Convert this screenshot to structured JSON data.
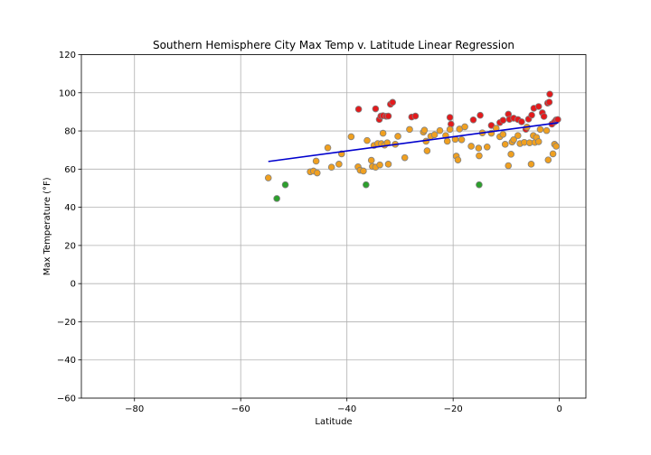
{
  "chart_data": {
    "type": "scatter",
    "title": "Southern Hemisphere City Max Temp v. Latitude Linear Regression",
    "xlabel": "Latitude",
    "ylabel": "Max Temperature (°F)",
    "xlim": [
      -90,
      5
    ],
    "ylim": [
      -60,
      120
    ],
    "xticks": [
      -80,
      -60,
      -40,
      -20,
      0
    ],
    "yticks": [
      -60,
      -40,
      -20,
      0,
      20,
      40,
      60,
      80,
      100,
      120
    ],
    "grid": true,
    "colors": {
      "warm": "#e31a1c",
      "mild": "#f0a020",
      "cool": "#2ca02c",
      "edge": "#808080",
      "regression": "#0000cd"
    },
    "regression": {
      "x": [
        -54.8,
        -0.2
      ],
      "y": [
        64.0,
        84.3
      ]
    },
    "series": [
      {
        "group": "warm",
        "points": [
          [
            -37.8,
            91.4
          ],
          [
            -34.6,
            91.6
          ],
          [
            -33.9,
            86
          ],
          [
            -33.6,
            87.8
          ],
          [
            -33.2,
            88
          ],
          [
            -32.6,
            87.7
          ],
          [
            -32.2,
            87.8
          ],
          [
            -31.8,
            94
          ],
          [
            -31.4,
            95
          ],
          [
            -27.8,
            87.3
          ],
          [
            -27.1,
            87.8
          ],
          [
            -20.6,
            87.1
          ],
          [
            -20.4,
            83.6
          ],
          [
            -16.2,
            85.8
          ],
          [
            -14.9,
            88.2
          ],
          [
            -12.8,
            82.9
          ],
          [
            -11.2,
            84.4
          ],
          [
            -10.6,
            85.6
          ],
          [
            -9.6,
            88.8
          ],
          [
            -9.4,
            86.1
          ],
          [
            -8.6,
            86.7
          ],
          [
            -7.8,
            86
          ],
          [
            -7.1,
            84.8
          ],
          [
            -6.3,
            80.9
          ],
          [
            -5.8,
            86.2
          ],
          [
            -5.2,
            88.3
          ],
          [
            -4.8,
            91.9
          ],
          [
            -3.9,
            92.8
          ],
          [
            -3.2,
            89.5
          ],
          [
            -2.9,
            87.6
          ],
          [
            -2.2,
            94.6
          ],
          [
            -1.9,
            95.1
          ],
          [
            -1.8,
            99.3
          ],
          [
            -1.4,
            83.6
          ],
          [
            -0.9,
            84.8
          ],
          [
            -0.6,
            85.8
          ],
          [
            -0.3,
            86
          ]
        ]
      },
      {
        "group": "mild",
        "points": [
          [
            -54.8,
            55.4
          ],
          [
            -46.9,
            58.6
          ],
          [
            -46.3,
            59
          ],
          [
            -45.8,
            64.2
          ],
          [
            -45.6,
            58
          ],
          [
            -43.6,
            71.2
          ],
          [
            -42.9,
            61
          ],
          [
            -41.5,
            62.6
          ],
          [
            -41,
            68
          ],
          [
            -39.2,
            77
          ],
          [
            -37.9,
            61.2
          ],
          [
            -37.5,
            59.4
          ],
          [
            -36.9,
            59
          ],
          [
            -36.2,
            75
          ],
          [
            -35.4,
            64.6
          ],
          [
            -35.2,
            61.4
          ],
          [
            -34.9,
            72.4
          ],
          [
            -34.6,
            61
          ],
          [
            -34.2,
            73.4
          ],
          [
            -33.8,
            62.2
          ],
          [
            -33.5,
            73.4
          ],
          [
            -33.2,
            78.8
          ],
          [
            -32.9,
            72.6
          ],
          [
            -32.4,
            73.8
          ],
          [
            -32.2,
            62.6
          ],
          [
            -30.9,
            73
          ],
          [
            -30.4,
            77.2
          ],
          [
            -29.1,
            66
          ],
          [
            -28.2,
            80.8
          ],
          [
            -25.6,
            79.4
          ],
          [
            -25.4,
            80.4
          ],
          [
            -25.1,
            74.6
          ],
          [
            -24.9,
            69.6
          ],
          [
            -24.2,
            77.2
          ],
          [
            -23.5,
            78
          ],
          [
            -22.5,
            80.2
          ],
          [
            -21.4,
            77.6
          ],
          [
            -21.1,
            74.6
          ],
          [
            -20.6,
            80.8
          ],
          [
            -19.6,
            75.6
          ],
          [
            -19.4,
            66.8
          ],
          [
            -19.1,
            64.8
          ],
          [
            -18.8,
            81
          ],
          [
            -18.4,
            75.4
          ],
          [
            -17.8,
            82.2
          ],
          [
            -16.6,
            72
          ],
          [
            -15.2,
            71
          ],
          [
            -15.1,
            67
          ],
          [
            -14.5,
            79
          ],
          [
            -13.6,
            71.6
          ],
          [
            -12.8,
            78.8
          ],
          [
            -11.9,
            81.4
          ],
          [
            -11.2,
            77
          ],
          [
            -10.6,
            78.2
          ],
          [
            -10.2,
            73
          ],
          [
            -9.6,
            61.8
          ],
          [
            -9.1,
            67.8
          ],
          [
            -8.9,
            74.2
          ],
          [
            -8.6,
            75.4
          ],
          [
            -7.8,
            77.6
          ],
          [
            -7.4,
            73.4
          ],
          [
            -6.6,
            74
          ],
          [
            -6.1,
            82
          ],
          [
            -5.6,
            73.8
          ],
          [
            -5.3,
            62.6
          ],
          [
            -4.9,
            77.6
          ],
          [
            -4.6,
            74
          ],
          [
            -4.3,
            76.6
          ],
          [
            -3.9,
            74.4
          ],
          [
            -3.6,
            80.8
          ],
          [
            -2.4,
            80.2
          ],
          [
            -2.1,
            64.8
          ],
          [
            -1.2,
            68
          ],
          [
            -0.9,
            73
          ],
          [
            -0.6,
            72
          ]
        ]
      },
      {
        "group": "cool",
        "points": [
          [
            -53.2,
            44.6
          ],
          [
            -51.6,
            51.8
          ],
          [
            -36.4,
            51.8
          ],
          [
            -15.1,
            51.8
          ]
        ]
      }
    ]
  }
}
